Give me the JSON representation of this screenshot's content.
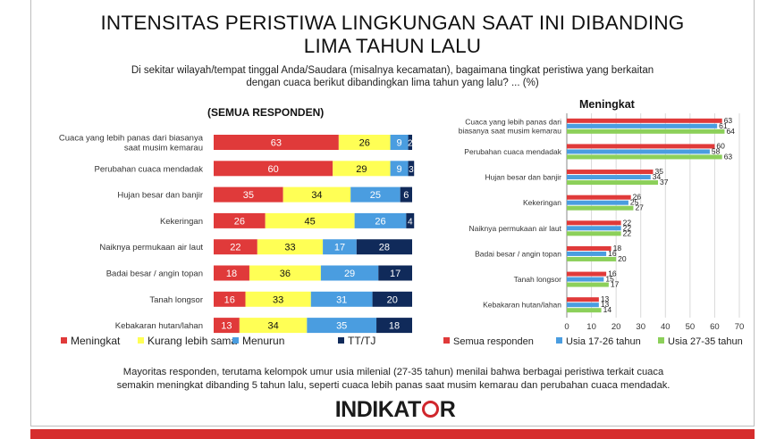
{
  "title_line1": "INTENSITAS PERISTIWA LINGKUNGAN SAAT INI DIBANDING",
  "title_line2": "LIMA TAHUN LALU",
  "question_line1": "Di sekitar wilayah/tempat tinggal Anda/Saudara (misalnya kecamatan), bagaimana tingkat peristiwa yang berkaitan",
  "question_line2": "dengan cuaca berikut dibandingkan lima tahun yang lalu? ... (%)",
  "footer_line1": "Mayoritas responden, terutama kelompok umur usia milenial (27-35 tahun) menilai bahwa berbagai peristiwa terkait cuaca",
  "footer_line2": "semakin meningkat dibanding 5 tahun lalu, seperti cuaca lebih panas saat musim kemarau dan perubahan cuaca mendadak.",
  "logo_text_left": "INDIKAT",
  "logo_text_right": "R",
  "chart_data": [
    {
      "type": "bar",
      "orientation": "horizontal",
      "stacked": true,
      "title": "(SEMUA RESPONDEN)",
      "categories": [
        [
          "Cuaca yang lebih panas dari biasanya",
          "saat musim kemarau"
        ],
        [
          "Perubahan cuaca mendadak"
        ],
        [
          "Hujan besar dan banjir"
        ],
        [
          "Kekeringan"
        ],
        [
          "Naiknya permukaan air laut"
        ],
        [
          "Badai besar / angin topan"
        ],
        [
          "Tanah longsor"
        ],
        [
          "Kebakaran hutan/lahan"
        ]
      ],
      "series": [
        {
          "name": "Meningkat",
          "color": "#e03a3a",
          "label_color": "#ffffff",
          "values": [
            63,
            60,
            35,
            26,
            22,
            18,
            16,
            13
          ]
        },
        {
          "name": "Kurang lebih sama",
          "color": "#ffff55",
          "label_color": "#111111",
          "values": [
            26,
            29,
            34,
            45,
            33,
            36,
            33,
            34
          ]
        },
        {
          "name": "Menurun",
          "color": "#4a9de0",
          "label_color": "#ffffff",
          "values": [
            9,
            9,
            25,
            26,
            17,
            29,
            31,
            35
          ]
        },
        {
          "name": "TT/TJ",
          "color": "#102a5a",
          "label_color": "#ffffff",
          "values": [
            2,
            3,
            6,
            4,
            28,
            17,
            20,
            18
          ]
        }
      ],
      "xlim": [
        0,
        100
      ],
      "legend": "bottom"
    },
    {
      "type": "bar",
      "orientation": "horizontal",
      "stacked": false,
      "title": "Meningkat",
      "categories": [
        [
          "Cuaca yang lebih panas dari",
          "biasanya saat musim kemarau"
        ],
        [
          "Perubahan cuaca mendadak"
        ],
        [
          "Hujan besar dan banjir"
        ],
        [
          "Kekeringan"
        ],
        [
          "Naiknya permukaan air laut"
        ],
        [
          "Badai besar / angin topan"
        ],
        [
          "Tanah longsor"
        ],
        [
          "Kebakaran hutan/lahan"
        ]
      ],
      "series": [
        {
          "name": "Semua responden",
          "color": "#e03a3a",
          "values": [
            63,
            60,
            35,
            26,
            22,
            18,
            16,
            13
          ]
        },
        {
          "name": "Usia 17-26 tahun",
          "color": "#4a9de0",
          "values": [
            61,
            58,
            34,
            25,
            22,
            16,
            15,
            13
          ]
        },
        {
          "name": "Usia 27-35 tahun",
          "color": "#8cd05a",
          "values": [
            64,
            63,
            37,
            27,
            22,
            20,
            17,
            14
          ]
        }
      ],
      "xlim": [
        0,
        70
      ],
      "xticks": [
        0,
        10,
        20,
        30,
        40,
        50,
        60,
        70
      ],
      "grid": true,
      "legend": "bottom"
    }
  ]
}
